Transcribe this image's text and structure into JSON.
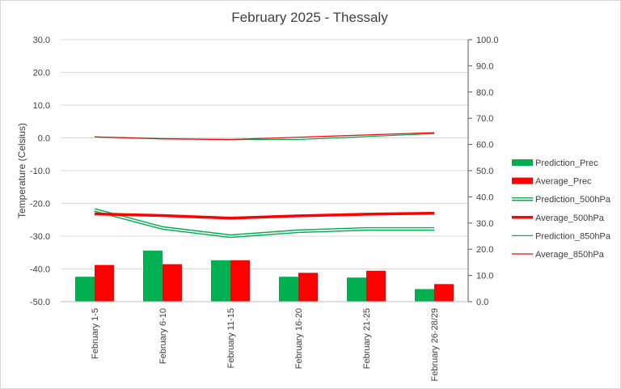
{
  "chart_data": {
    "type": "bar",
    "title": "February 2025 - Thessaly",
    "ylabel": "Temperature (Celsius)",
    "ylim": [
      -50,
      30
    ],
    "y_ticks": [
      "30.0",
      "20.0",
      "10.0",
      "0.0",
      "-10.0",
      "-20.0",
      "-30.0",
      "-40.0",
      "-50.0"
    ],
    "y2lim": [
      0,
      100
    ],
    "y2_ticks": [
      "100.0",
      "90.0",
      "80.0",
      "70.0",
      "60.0",
      "50.0",
      "40.0",
      "30.0",
      "20.0",
      "10.0",
      "0.0"
    ],
    "grid": true,
    "legend_position": "right",
    "categories": [
      "February 1-5",
      "February 6-10",
      "February 11-15",
      "February 16-20",
      "February 21-25",
      "February 26-28/29"
    ],
    "series": [
      {
        "name": "Prediction_Prec",
        "kind": "bar",
        "axis": "secondary",
        "color": "#00b050",
        "values": [
          9.5,
          19.5,
          15.8,
          9.5,
          9.2,
          4.8
        ]
      },
      {
        "name": "Average_Prec",
        "kind": "bar",
        "axis": "secondary",
        "color": "#ff0000",
        "values": [
          14.0,
          14.3,
          15.8,
          11.0,
          11.8,
          6.7
        ]
      },
      {
        "name": "Prediction_500hPa",
        "kind": "line",
        "style": "double",
        "axis": "primary",
        "color": "#00b050",
        "values": [
          -22.0,
          -27.5,
          -30.0,
          -28.5,
          -27.8,
          -27.8
        ]
      },
      {
        "name": "Average_500hPa",
        "kind": "line",
        "style": "thick",
        "axis": "primary",
        "color": "#ff0000",
        "values": [
          -23.2,
          -23.7,
          -24.5,
          -23.8,
          -23.3,
          -23.0
        ]
      },
      {
        "name": "Prediction_850hPa",
        "kind": "line",
        "style": "thin",
        "axis": "primary",
        "color": "#00b050",
        "values": [
          0.3,
          -0.2,
          -0.5,
          -0.5,
          0.4,
          1.3
        ]
      },
      {
        "name": "Average_850hPa",
        "kind": "line",
        "style": "thin",
        "axis": "primary",
        "color": "#ff0000",
        "values": [
          0.3,
          -0.3,
          -0.5,
          0.2,
          0.9,
          1.6
        ]
      }
    ]
  }
}
